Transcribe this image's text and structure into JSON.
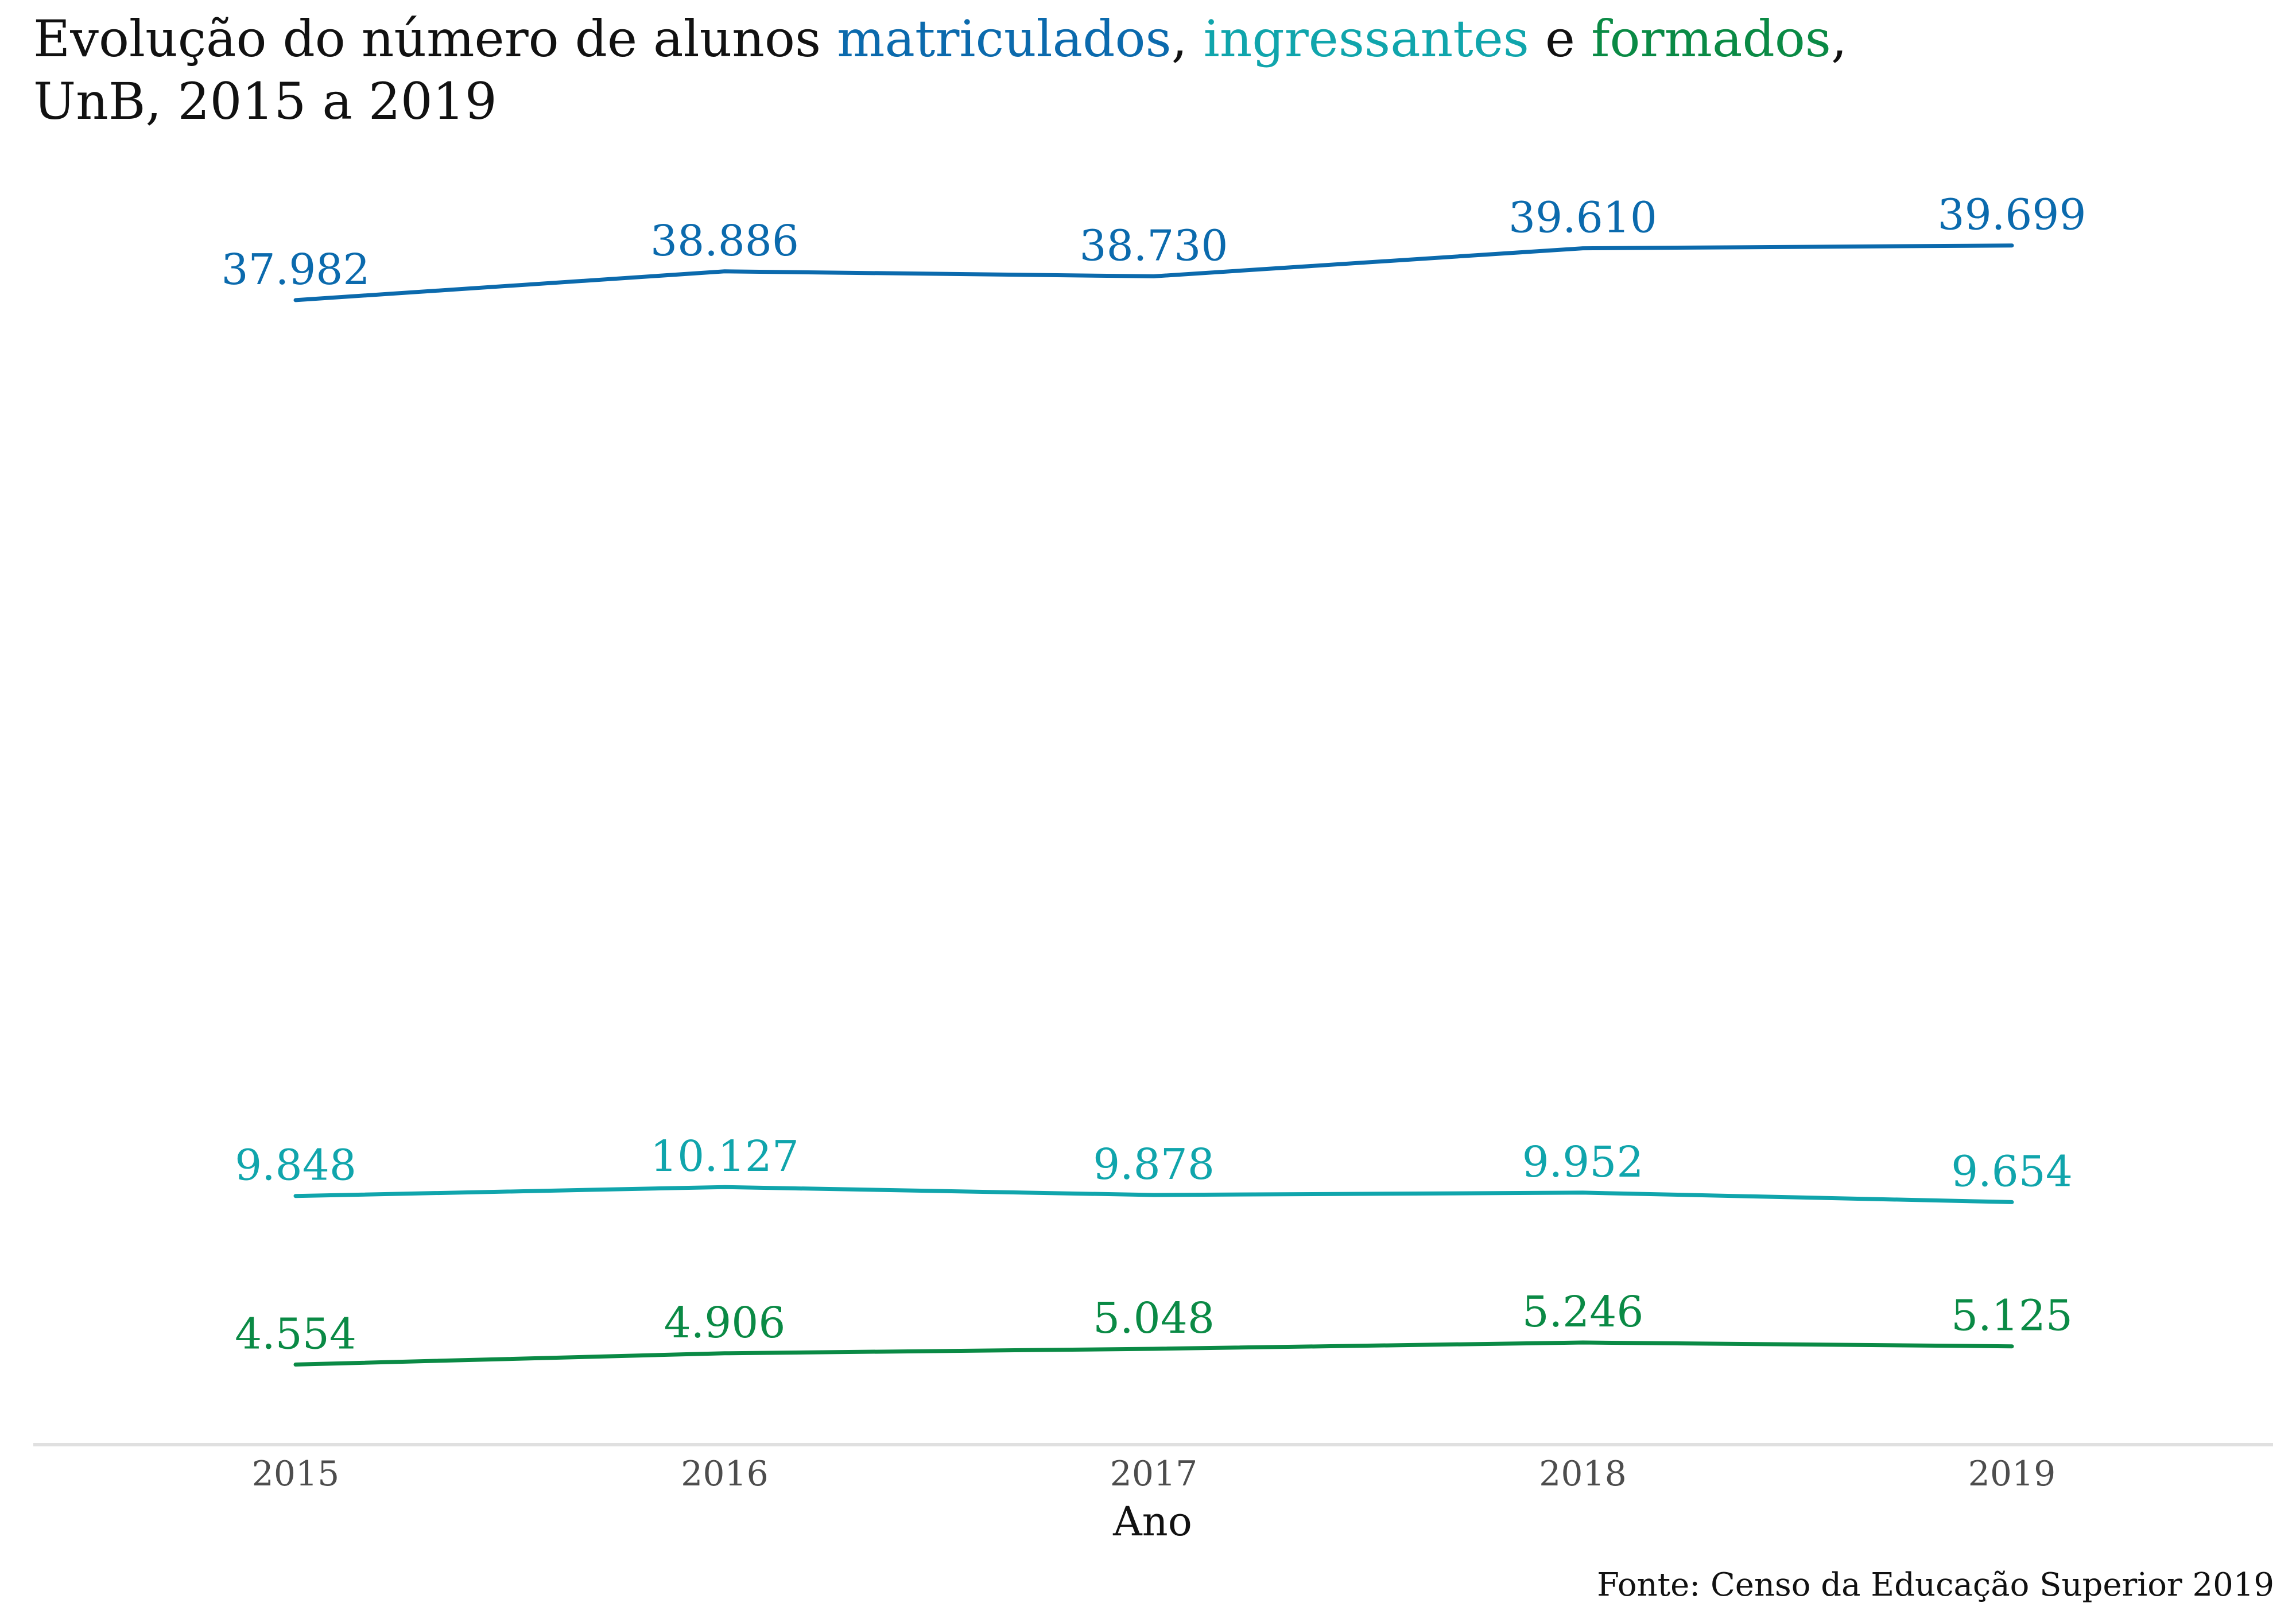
{
  "chart_data": {
    "type": "line",
    "title": {
      "line1_prefix": "Evolução do número de alunos ",
      "line1_matriculados": "matriculados",
      "line1_sep1": ", ",
      "line1_ingressantes": "ingressantes",
      "line1_sep2": " e ",
      "line1_formados": "formados",
      "line1_end": ",",
      "line2": "UnB, 2015 a 2019"
    },
    "xlabel": "Ano",
    "ylabel": "",
    "x": [
      2015,
      2016,
      2017,
      2018,
      2019
    ],
    "ylim": [
      0,
      42000
    ],
    "grid": false,
    "legend": "none",
    "series": [
      {
        "name": "matriculados",
        "color": "#0b6aad",
        "values": [
          37982,
          38886,
          38730,
          39610,
          39699
        ],
        "labels": [
          "37.982",
          "38.886",
          "38.730",
          "39.610",
          "39.699"
        ]
      },
      {
        "name": "ingressantes",
        "color": "#10a5ac",
        "values": [
          9848,
          10127,
          9878,
          9952,
          9654
        ],
        "labels": [
          "9.848",
          "10.127",
          "9.878",
          "9.952",
          "9.654"
        ]
      },
      {
        "name": "formados",
        "color": "#0a8a45",
        "values": [
          4554,
          4906,
          5048,
          5246,
          5125
        ],
        "labels": [
          "4.554",
          "4.906",
          "5.048",
          "5.246",
          "5.125"
        ]
      }
    ],
    "source": "Fonte: Censo da Educação Superior 2019"
  }
}
